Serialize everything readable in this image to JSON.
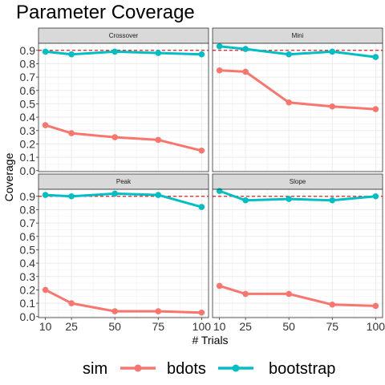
{
  "chart_data": {
    "type": "line",
    "title": "Parameter Coverage",
    "xlabel": "# Trials",
    "ylabel": "Coverage",
    "x": [
      10,
      25,
      50,
      75,
      100
    ],
    "x_ticks": [
      "10",
      "25",
      "50",
      "75",
      "100"
    ],
    "xlim": [
      6,
      104
    ],
    "y_ticks": [
      "0.0",
      "0.1",
      "0.2",
      "0.3",
      "0.4",
      "0.5",
      "0.6",
      "0.7",
      "0.8",
      "0.9"
    ],
    "ylim": [
      -0.0075,
      0.9525
    ],
    "reference_line": 0.9,
    "grid": true,
    "legend_position": "bottom",
    "legend_title": "sim",
    "series_colors": {
      "bdots": "#F8766D",
      "bootstrap": "#00BFC4"
    },
    "facets": [
      {
        "label": "Crossover",
        "series": [
          {
            "name": "bdots",
            "values": [
              0.34,
              0.28,
              0.25,
              0.23,
              0.15
            ]
          },
          {
            "name": "bootstrap",
            "values": [
              0.89,
              0.87,
              0.89,
              0.88,
              0.87
            ]
          }
        ]
      },
      {
        "label": "Mini",
        "series": [
          {
            "name": "bdots",
            "values": [
              0.75,
              0.74,
              0.51,
              0.48,
              0.46
            ]
          },
          {
            "name": "bootstrap",
            "values": [
              0.93,
              0.91,
              0.87,
              0.89,
              0.85
            ]
          }
        ]
      },
      {
        "label": "Peak",
        "series": [
          {
            "name": "bdots",
            "values": [
              0.2,
              0.1,
              0.04,
              0.04,
              0.03
            ]
          },
          {
            "name": "bootstrap",
            "values": [
              0.91,
              0.9,
              0.92,
              0.91,
              0.82
            ]
          }
        ]
      },
      {
        "label": "Slope",
        "series": [
          {
            "name": "bdots",
            "values": [
              0.23,
              0.17,
              0.17,
              0.09,
              0.08
            ]
          },
          {
            "name": "bootstrap",
            "values": [
              0.94,
              0.87,
              0.88,
              0.87,
              0.9
            ]
          }
        ]
      }
    ]
  }
}
